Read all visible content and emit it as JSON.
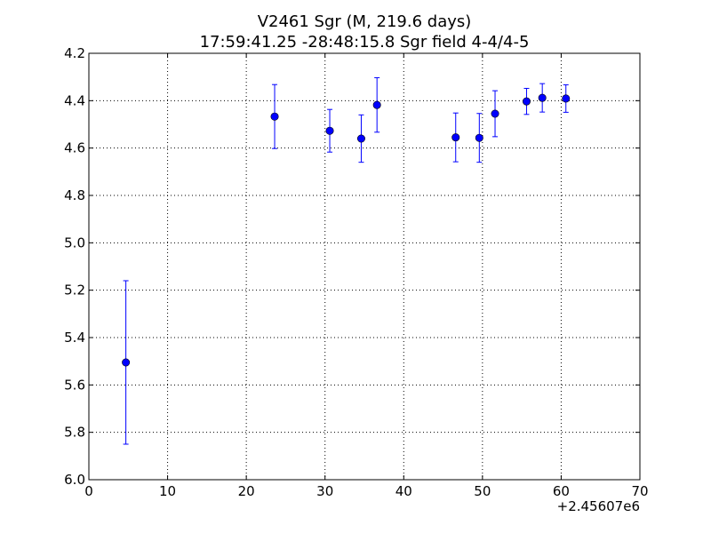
{
  "chart_data": {
    "type": "scatter",
    "title": "V2461 Sgr (M, 219.6 days)",
    "subtitle": "17:59:41.25 -28:48:15.8 Sgr field 4-4/4-5",
    "xlabel": "",
    "ylabel": "",
    "x_offset_label": "+2.45607e6",
    "xlim": [
      0,
      70
    ],
    "ylim": [
      6.0,
      4.2
    ],
    "y_inverted": true,
    "grid": true,
    "x_ticks": [
      0,
      10,
      20,
      30,
      40,
      50,
      60,
      70
    ],
    "x_tick_labels": [
      "0",
      "10",
      "20",
      "30",
      "40",
      "50",
      "60",
      "70"
    ],
    "y_ticks": [
      4.2,
      4.4,
      4.6,
      4.8,
      5.0,
      5.2,
      5.4,
      5.6,
      5.8,
      6.0
    ],
    "y_tick_labels": [
      "4.2",
      "4.4",
      "4.6",
      "4.8",
      "5.0",
      "5.2",
      "5.4",
      "5.6",
      "5.8",
      "6.0"
    ],
    "marker_color": "#0000ff",
    "series": [
      {
        "points": [
          {
            "x": 4.7,
            "y": 5.505,
            "err": 0.345
          },
          {
            "x": 23.6,
            "y": 4.467,
            "err": 0.135
          },
          {
            "x": 30.6,
            "y": 4.527,
            "err": 0.09
          },
          {
            "x": 34.6,
            "y": 4.56,
            "err": 0.1
          },
          {
            "x": 36.6,
            "y": 4.418,
            "err": 0.115
          },
          {
            "x": 46.6,
            "y": 4.555,
            "err": 0.103
          },
          {
            "x": 49.6,
            "y": 4.557,
            "err": 0.103
          },
          {
            "x": 51.6,
            "y": 4.455,
            "err": 0.097
          },
          {
            "x": 55.6,
            "y": 4.403,
            "err": 0.055
          },
          {
            "x": 57.6,
            "y": 4.388,
            "err": 0.06
          },
          {
            "x": 60.6,
            "y": 4.391,
            "err": 0.058
          }
        ]
      }
    ]
  }
}
